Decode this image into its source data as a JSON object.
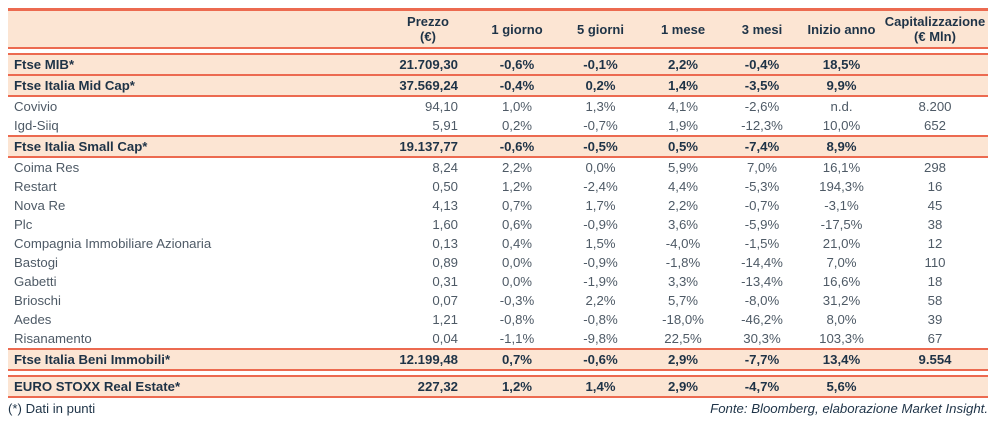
{
  "colors": {
    "coral": "#ec6a50",
    "peach": "#fce5d3",
    "navy": "#1e3347",
    "slate": "#4e5a66"
  },
  "table": {
    "columns": [
      {
        "id": "name",
        "label": "",
        "label2": ""
      },
      {
        "id": "prezzo",
        "label": "Prezzo",
        "label2": "(€)"
      },
      {
        "id": "d1",
        "label": "1 giorno",
        "label2": ""
      },
      {
        "id": "d5",
        "label": "5 giorni",
        "label2": ""
      },
      {
        "id": "m1",
        "label": "1 mese",
        "label2": ""
      },
      {
        "id": "m3",
        "label": "3 mesi",
        "label2": ""
      },
      {
        "id": "ytd",
        "label": "Inizio anno",
        "label2": ""
      },
      {
        "id": "cap",
        "label": "Capitalizzazione",
        "label2": "(€ Mln)"
      }
    ],
    "rows": [
      {
        "name": "Ftse MIB*",
        "prezzo": "21.709,30",
        "d1": "-0,6%",
        "d5": "-0,1%",
        "m1": "2,2%",
        "m3": "-0,4%",
        "ytd": "18,5%",
        "cap": "",
        "highlight": true,
        "spacer_before": true
      },
      {
        "name": "Ftse Italia Mid Cap*",
        "prezzo": "37.569,24",
        "d1": "-0,4%",
        "d5": "0,2%",
        "m1": "1,4%",
        "m3": "-3,5%",
        "ytd": "9,9%",
        "cap": "",
        "highlight": true,
        "spacer_before": false
      },
      {
        "name": "Covivio",
        "prezzo": "94,10",
        "d1": "1,0%",
        "d5": "1,3%",
        "m1": "4,1%",
        "m3": "-2,6%",
        "ytd": "n.d.",
        "cap": "8.200",
        "highlight": false,
        "spacer_before": false
      },
      {
        "name": "Igd-Siiq",
        "prezzo": "5,91",
        "d1": "0,2%",
        "d5": "-0,7%",
        "m1": "1,9%",
        "m3": "-12,3%",
        "ytd": "10,0%",
        "cap": "652",
        "highlight": false,
        "spacer_before": false
      },
      {
        "name": "Ftse Italia Small Cap*",
        "prezzo": "19.137,77",
        "d1": "-0,6%",
        "d5": "-0,5%",
        "m1": "0,5%",
        "m3": "-7,4%",
        "ytd": "8,9%",
        "cap": "",
        "highlight": true,
        "spacer_before": false
      },
      {
        "name": "Coima Res",
        "prezzo": "8,24",
        "d1": "2,2%",
        "d5": "0,0%",
        "m1": "5,9%",
        "m3": "7,0%",
        "ytd": "16,1%",
        "cap": "298",
        "highlight": false,
        "spacer_before": false
      },
      {
        "name": "Restart",
        "prezzo": "0,50",
        "d1": "1,2%",
        "d5": "-2,4%",
        "m1": "4,4%",
        "m3": "-5,3%",
        "ytd": "194,3%",
        "cap": "16",
        "highlight": false,
        "spacer_before": false
      },
      {
        "name": "Nova Re",
        "prezzo": "4,13",
        "d1": "0,7%",
        "d5": "1,7%",
        "m1": "2,2%",
        "m3": "-0,7%",
        "ytd": "-3,1%",
        "cap": "45",
        "highlight": false,
        "spacer_before": false
      },
      {
        "name": "Plc",
        "prezzo": "1,60",
        "d1": "0,6%",
        "d5": "-0,9%",
        "m1": "3,6%",
        "m3": "-5,9%",
        "ytd": "-17,5%",
        "cap": "38",
        "highlight": false,
        "spacer_before": false
      },
      {
        "name": "Compagnia Immobiliare Azionaria",
        "prezzo": "0,13",
        "d1": "0,4%",
        "d5": "1,5%",
        "m1": "-4,0%",
        "m3": "-1,5%",
        "ytd": "21,0%",
        "cap": "12",
        "highlight": false,
        "spacer_before": false
      },
      {
        "name": "Bastogi",
        "prezzo": "0,89",
        "d1": "0,0%",
        "d5": "-0,9%",
        "m1": "-1,8%",
        "m3": "-14,4%",
        "ytd": "7,0%",
        "cap": "110",
        "highlight": false,
        "spacer_before": false
      },
      {
        "name": "Gabetti",
        "prezzo": "0,31",
        "d1": "0,0%",
        "d5": "-1,9%",
        "m1": "3,3%",
        "m3": "-13,4%",
        "ytd": "16,6%",
        "cap": "18",
        "highlight": false,
        "spacer_before": false
      },
      {
        "name": "Brioschi",
        "prezzo": "0,07",
        "d1": "-0,3%",
        "d5": "2,2%",
        "m1": "5,7%",
        "m3": "-8,0%",
        "ytd": "31,2%",
        "cap": "58",
        "highlight": false,
        "spacer_before": false
      },
      {
        "name": "Aedes",
        "prezzo": "1,21",
        "d1": "-0,8%",
        "d5": "-0,8%",
        "m1": "-18,0%",
        "m3": "-46,2%",
        "ytd": "8,0%",
        "cap": "39",
        "highlight": false,
        "spacer_before": false
      },
      {
        "name": "Risanamento",
        "prezzo": "0,04",
        "d1": "-1,1%",
        "d5": "-9,8%",
        "m1": "22,5%",
        "m3": "30,3%",
        "ytd": "103,3%",
        "cap": "67",
        "highlight": false,
        "spacer_before": false
      },
      {
        "name": "Ftse Italia Beni Immobili*",
        "prezzo": "12.199,48",
        "d1": "0,7%",
        "d5": "-0,6%",
        "m1": "2,9%",
        "m3": "-7,7%",
        "ytd": "13,4%",
        "cap": "9.554",
        "highlight": true,
        "spacer_before": false
      },
      {
        "name": "EURO STOXX Real Estate*",
        "prezzo": "227,32",
        "d1": "1,2%",
        "d5": "1,4%",
        "m1": "2,9%",
        "m3": "-4,7%",
        "ytd": "5,6%",
        "cap": "",
        "highlight": true,
        "spacer_before": true
      }
    ]
  },
  "footer": {
    "note": "(*) Dati in punti",
    "source": "Fonte: Bloomberg, elaborazione Market Insight."
  }
}
